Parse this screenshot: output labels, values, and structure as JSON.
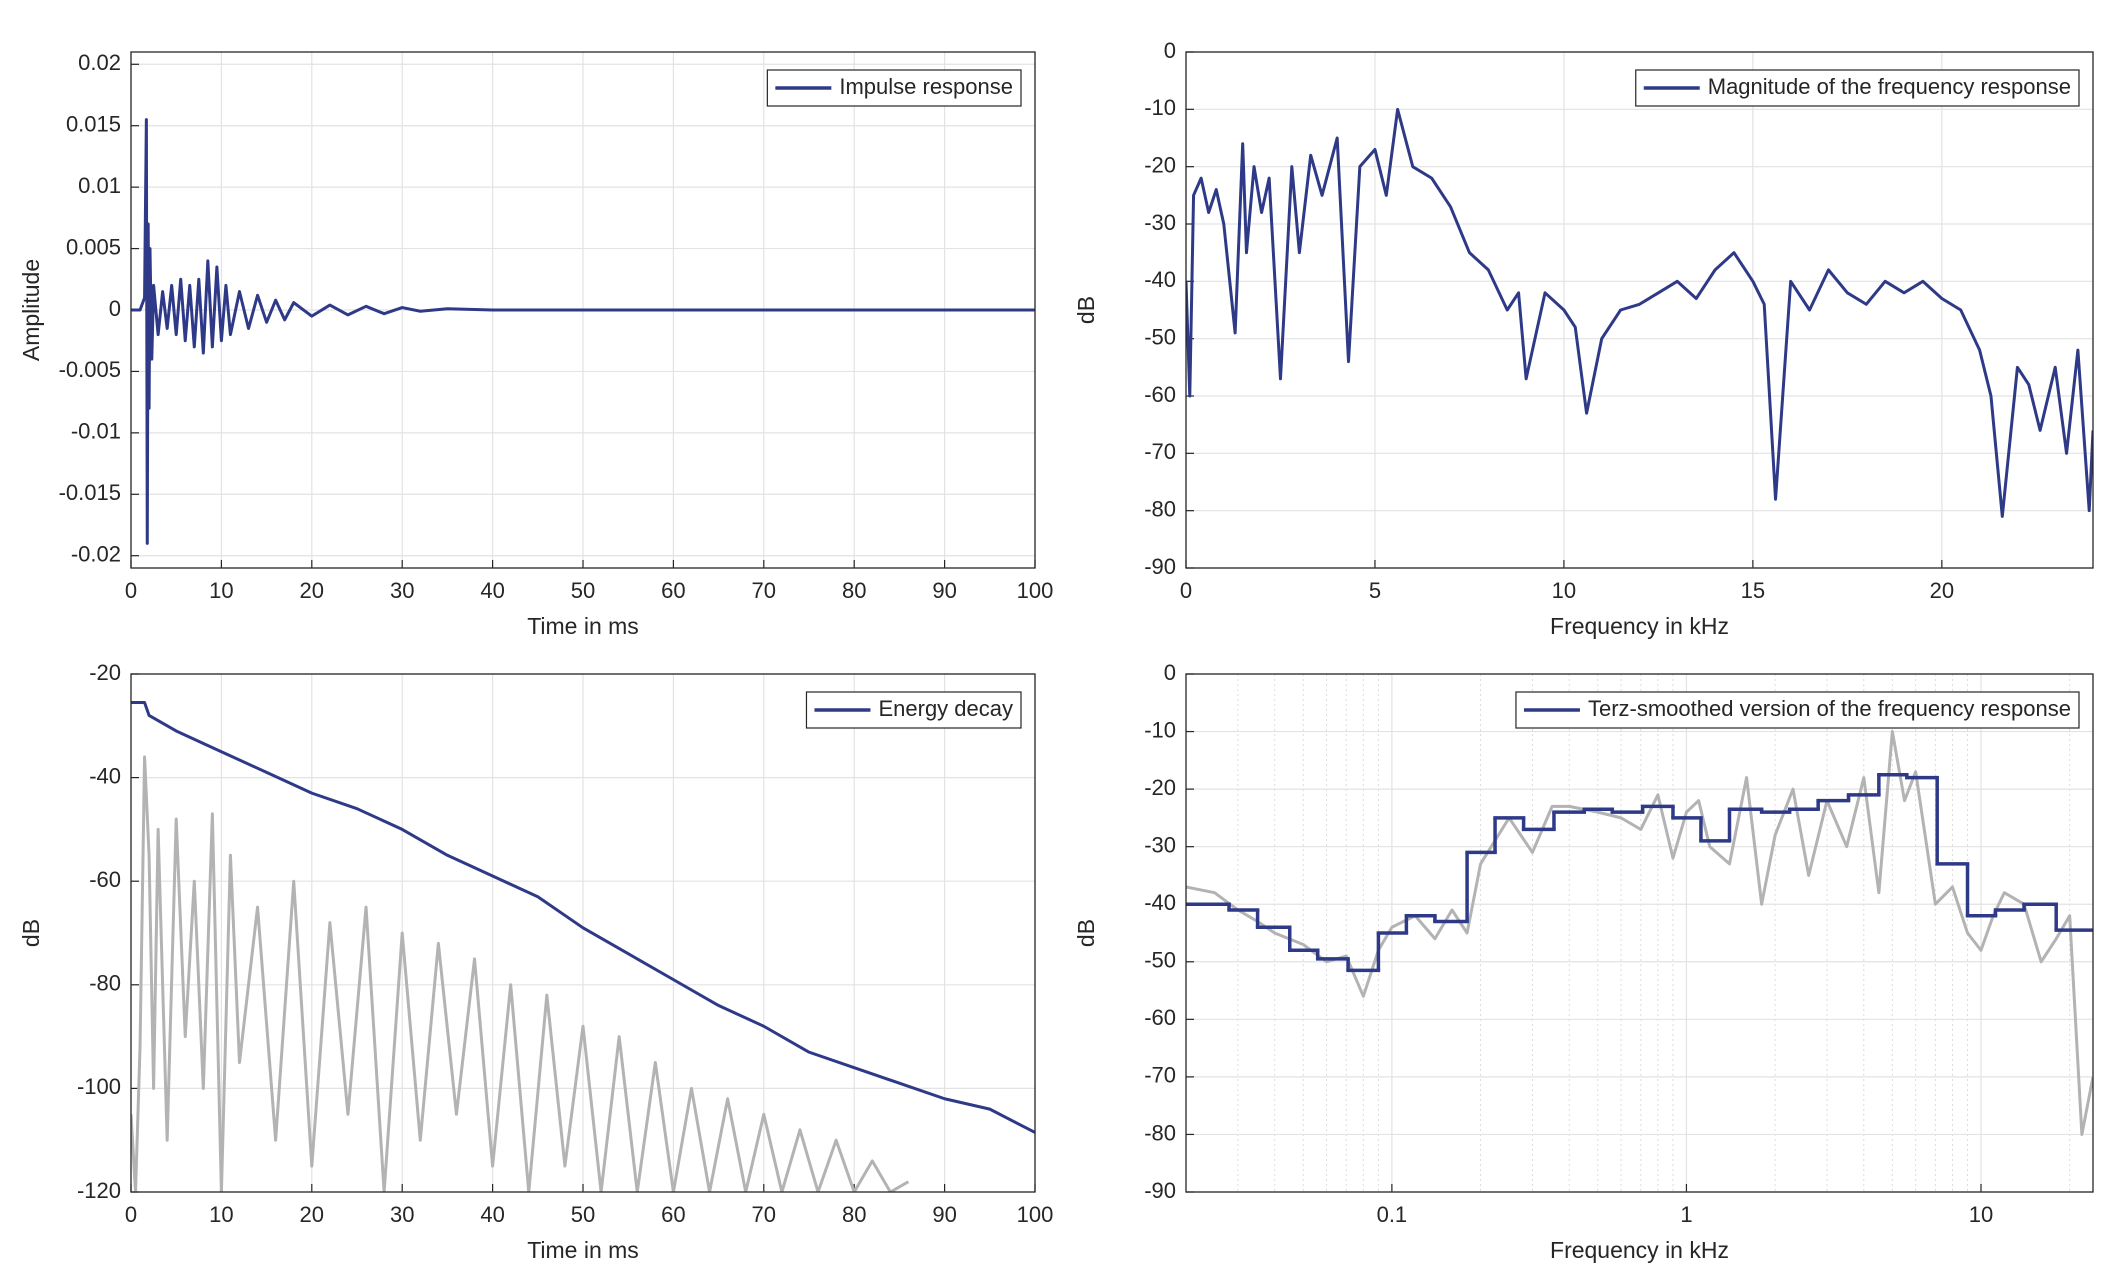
{
  "chart_data": [
    {
      "type": "line",
      "xlabel": "Time in ms",
      "ylabel": "Amplitude",
      "xlim": [
        0,
        100
      ],
      "ylim": [
        -0.021,
        0.021
      ],
      "xticks": [
        0,
        10,
        20,
        30,
        40,
        50,
        60,
        70,
        80,
        90,
        100
      ],
      "yticks": [
        -0.02,
        -0.015,
        -0.01,
        -0.005,
        0,
        0.005,
        0.01,
        0.015,
        0.02
      ],
      "grid": true,
      "legend": "northeast",
      "series": [
        {
          "name": "Impulse response",
          "color": "#2e3a87",
          "x": [
            0,
            1.0,
            1.5,
            1.7,
            1.8,
            1.9,
            2.0,
            2.1,
            2.3,
            2.5,
            3,
            3.5,
            4,
            4.5,
            5,
            5.5,
            6,
            6.5,
            7,
            7.5,
            8,
            8.5,
            9,
            9.5,
            10,
            10.5,
            11,
            12,
            13,
            14,
            15,
            16,
            17,
            18,
            20,
            22,
            24,
            26,
            28,
            30,
            32,
            35,
            40,
            50,
            60,
            80,
            100
          ],
          "values": [
            0,
            0,
            0.001,
            0.0155,
            -0.019,
            0.007,
            -0.008,
            0.005,
            -0.004,
            0.002,
            -0.002,
            0.0015,
            -0.0015,
            0.002,
            -0.002,
            0.0025,
            -0.0025,
            0.002,
            -0.003,
            0.0025,
            -0.0035,
            0.004,
            -0.003,
            0.0035,
            -0.0025,
            0.002,
            -0.002,
            0.0015,
            -0.0015,
            0.0012,
            -0.001,
            0.0008,
            -0.0008,
            0.0006,
            -0.0005,
            0.0004,
            -0.0004,
            0.0003,
            -0.0003,
            0.0002,
            -0.0001,
            0.0001,
            0,
            0,
            0,
            0,
            0
          ]
        }
      ]
    },
    {
      "type": "line",
      "xlabel": "Frequency in kHz",
      "ylabel": "dB",
      "xlim": [
        0,
        24
      ],
      "ylim": [
        -90,
        0
      ],
      "xticks": [
        0,
        5,
        10,
        15,
        20
      ],
      "yticks": [
        -90,
        -80,
        -70,
        -60,
        -50,
        -40,
        -30,
        -20,
        -10,
        0
      ],
      "grid": true,
      "legend": "northeast",
      "series": [
        {
          "name": "Magnitude of the frequency response",
          "color": "#2e3a87",
          "x": [
            0,
            0.1,
            0.2,
            0.4,
            0.6,
            0.8,
            1.0,
            1.3,
            1.5,
            1.6,
            1.8,
            2.0,
            2.2,
            2.5,
            2.8,
            3.0,
            3.3,
            3.6,
            4.0,
            4.3,
            4.6,
            5.0,
            5.3,
            5.6,
            6.0,
            6.5,
            7.0,
            7.5,
            8.0,
            8.5,
            8.8,
            9.0,
            9.5,
            10.0,
            10.3,
            10.6,
            11.0,
            11.5,
            12.0,
            12.5,
            13.0,
            13.5,
            14.0,
            14.5,
            15.0,
            15.3,
            15.6,
            16.0,
            16.5,
            17.0,
            17.5,
            18.0,
            18.5,
            19.0,
            19.5,
            20.0,
            20.5,
            21.0,
            21.3,
            21.6,
            22.0,
            22.3,
            22.6,
            23.0,
            23.3,
            23.6,
            23.9,
            24.0
          ],
          "values": [
            -40,
            -60,
            -25,
            -22,
            -28,
            -24,
            -30,
            -49,
            -16,
            -35,
            -20,
            -28,
            -22,
            -57,
            -20,
            -35,
            -18,
            -25,
            -15,
            -54,
            -20,
            -17,
            -25,
            -10,
            -20,
            -22,
            -27,
            -35,
            -38,
            -45,
            -42,
            -57,
            -42,
            -45,
            -48,
            -63,
            -50,
            -45,
            -44,
            -42,
            -40,
            -43,
            -38,
            -35,
            -40,
            -44,
            -78,
            -40,
            -45,
            -38,
            -42,
            -44,
            -40,
            -42,
            -40,
            -43,
            -45,
            -52,
            -60,
            -81,
            -55,
            -58,
            -66,
            -55,
            -70,
            -52,
            -80,
            -66
          ]
        }
      ]
    },
    {
      "type": "line",
      "xlabel": "Time in ms",
      "ylabel": "dB",
      "xlim": [
        0,
        100
      ],
      "ylim": [
        -120,
        -20
      ],
      "xticks": [
        0,
        10,
        20,
        30,
        40,
        50,
        60,
        70,
        80,
        90,
        100
      ],
      "yticks": [
        -120,
        -100,
        -80,
        -60,
        -40,
        -20
      ],
      "grid": true,
      "legend": "northeast",
      "series": [
        {
          "color": "#b3b3b3",
          "x": [
            0,
            0.5,
            1,
            1.5,
            2,
            2.5,
            3,
            4,
            5,
            6,
            7,
            8,
            9,
            10,
            11,
            12,
            14,
            16,
            18,
            20,
            22,
            24,
            26,
            28,
            30,
            32,
            34,
            36,
            38,
            40,
            42,
            44,
            46,
            48,
            50,
            52,
            54,
            56,
            58,
            60,
            62,
            64,
            66,
            68,
            70,
            72,
            74,
            76,
            78,
            80,
            82,
            84,
            86
          ],
          "values": [
            -105,
            -120,
            -92,
            -36,
            -55,
            -100,
            -50,
            -110,
            -48,
            -90,
            -60,
            -100,
            -47,
            -120,
            -55,
            -95,
            -65,
            -110,
            -60,
            -115,
            -68,
            -105,
            -65,
            -120,
            -70,
            -110,
            -72,
            -105,
            -75,
            -115,
            -80,
            -120,
            -82,
            -115,
            -88,
            -120,
            -90,
            -120,
            -95,
            -120,
            -100,
            -120,
            -102,
            -120,
            -105,
            -120,
            -108,
            -120,
            -110,
            -120,
            -114,
            -120,
            -118
          ]
        },
        {
          "name": "Energy decay",
          "color": "#2e3a87",
          "x": [
            0,
            1.5,
            2,
            5,
            10,
            15,
            20,
            25,
            30,
            35,
            40,
            45,
            50,
            55,
            60,
            65,
            70,
            75,
            80,
            85,
            90,
            95,
            100
          ],
          "values": [
            -25.5,
            -25.5,
            -28,
            -31,
            -35,
            -39,
            -43,
            -46,
            -50,
            -55,
            -59,
            -63,
            -69,
            -74,
            -79,
            -84,
            -88,
            -93,
            -96,
            -99,
            -102,
            -104,
            -108.5
          ]
        }
      ]
    },
    {
      "type": "line",
      "xlabel": "Frequency in kHz",
      "ylabel": "dB",
      "xscale": "log",
      "xlim": [
        0.02,
        24
      ],
      "ylim": [
        -90,
        0
      ],
      "xticks": [
        0.1,
        1,
        10
      ],
      "yticks": [
        -90,
        -80,
        -70,
        -60,
        -50,
        -40,
        -30,
        -20,
        -10,
        0
      ],
      "grid": true,
      "minor_grid": true,
      "legend": "northeast",
      "series": [
        {
          "color": "#b3b3b3",
          "x": [
            0.02,
            0.025,
            0.03,
            0.035,
            0.04,
            0.05,
            0.06,
            0.07,
            0.08,
            0.09,
            0.1,
            0.12,
            0.14,
            0.16,
            0.18,
            0.2,
            0.25,
            0.3,
            0.35,
            0.4,
            0.5,
            0.6,
            0.7,
            0.8,
            0.9,
            1.0,
            1.1,
            1.2,
            1.4,
            1.6,
            1.8,
            2.0,
            2.3,
            2.6,
            3.0,
            3.5,
            4.0,
            4.5,
            5.0,
            5.5,
            6.0,
            7.0,
            8.0,
            9.0,
            10,
            11,
            12,
            14,
            16,
            18,
            20,
            22,
            24
          ],
          "values": [
            -37,
            -38,
            -41,
            -43,
            -45,
            -47,
            -50,
            -49,
            -56,
            -48,
            -44,
            -42,
            -46,
            -41,
            -45,
            -33,
            -25,
            -31,
            -23,
            -23,
            -24,
            -25,
            -27,
            -21,
            -32,
            -24,
            -22,
            -30,
            -33,
            -18,
            -40,
            -28,
            -20,
            -35,
            -22,
            -30,
            -18,
            -38,
            -10,
            -22,
            -17,
            -40,
            -37,
            -45,
            -48,
            -42,
            -38,
            -40,
            -50,
            -46,
            -42,
            -80,
            -70
          ]
        },
        {
          "name": "Terz-smoothed version of the frequency response",
          "color": "#2e3a87",
          "drawstyle": "steps",
          "bins": [
            0.02,
            0.028,
            0.035,
            0.045,
            0.056,
            0.071,
            0.09,
            0.112,
            0.14,
            0.18,
            0.224,
            0.28,
            0.355,
            0.45,
            0.56,
            0.71,
            0.9,
            1.12,
            1.4,
            1.8,
            2.24,
            2.8,
            3.55,
            4.5,
            5.6,
            7.1,
            9,
            11.2,
            14,
            18,
            24
          ],
          "values": [
            -40,
            -41,
            -44,
            -48,
            -49.5,
            -51.5,
            -45,
            -42,
            -43,
            -31,
            -25,
            -27,
            -24,
            -23.5,
            -24,
            -23,
            -25,
            -29,
            -23.5,
            -24,
            -23.5,
            -22,
            -21,
            -17.5,
            -18,
            -33,
            -42,
            -41,
            -40,
            -44.5
          ]
        }
      ]
    }
  ]
}
